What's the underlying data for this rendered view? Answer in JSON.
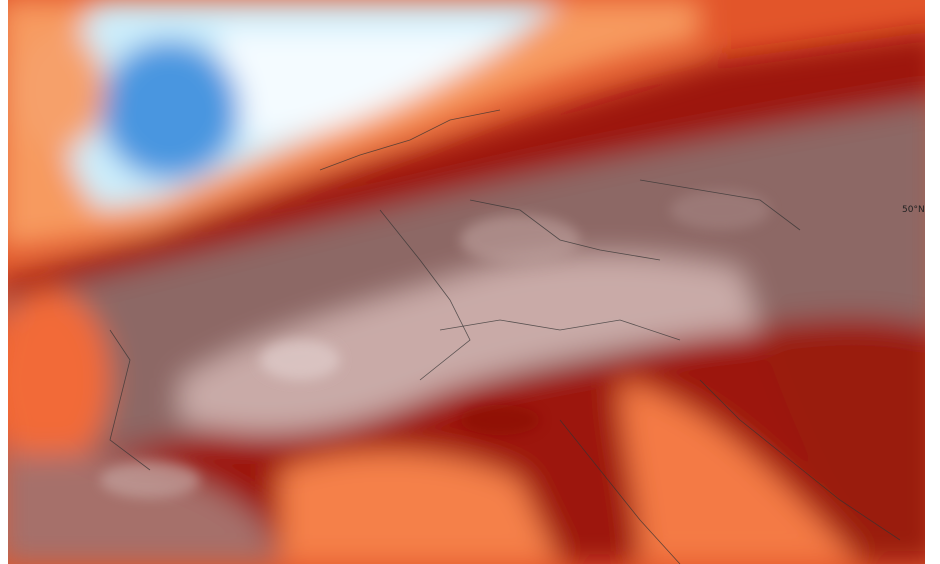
{
  "map": {
    "labels": [
      "50°N"
    ]
  }
}
